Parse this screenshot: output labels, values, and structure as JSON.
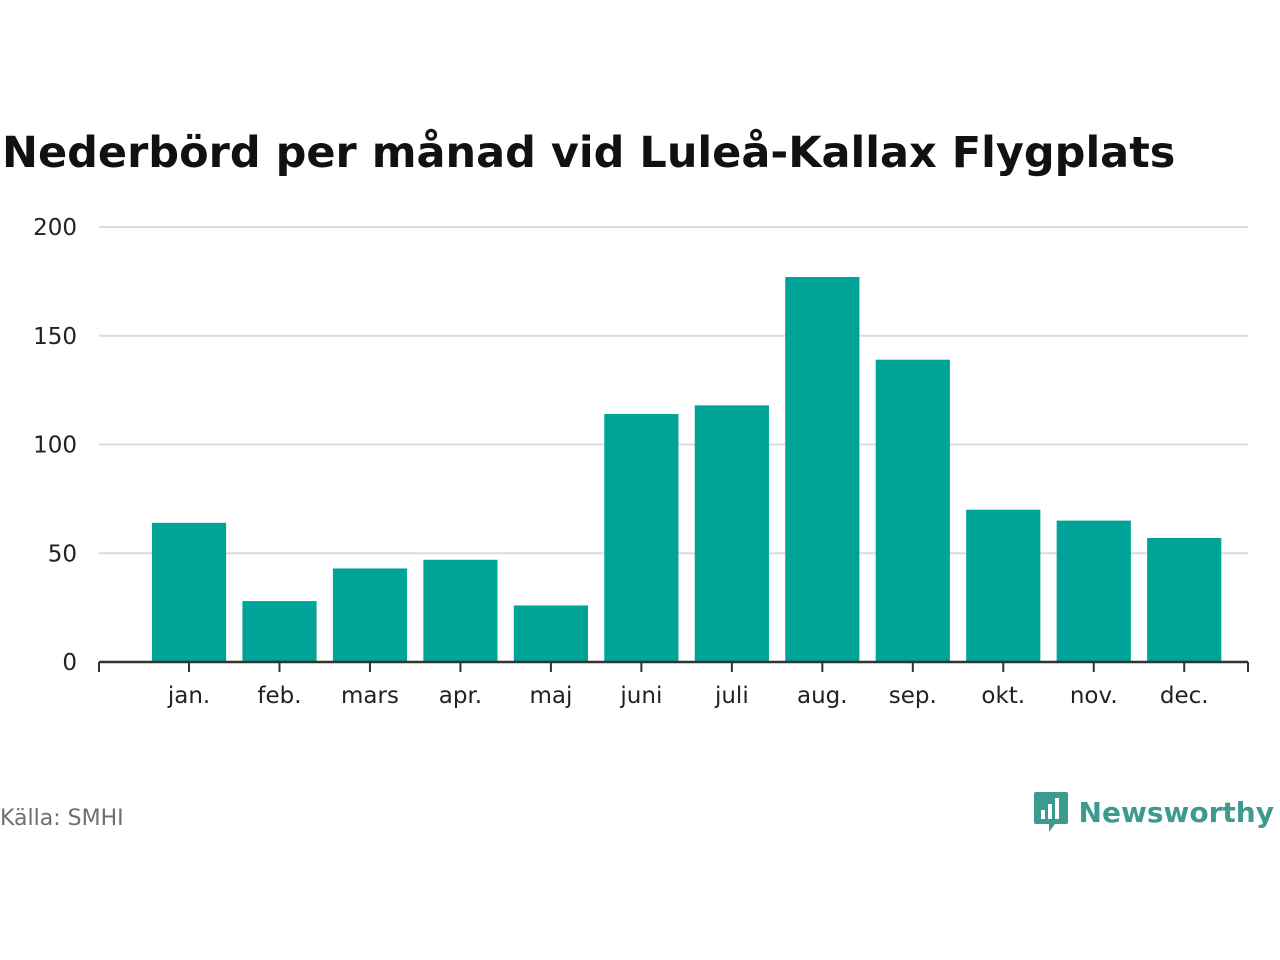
{
  "chart_data": {
    "type": "bar",
    "title": "Nederbörd per månad vid Luleå-Kallax Flygplats",
    "xlabel": "",
    "ylabel": "",
    "categories": [
      "jan.",
      "feb.",
      "mars",
      "apr.",
      "maj",
      "juni",
      "juli",
      "aug.",
      "sep.",
      "okt.",
      "nov.",
      "dec."
    ],
    "values": [
      64,
      28,
      43,
      47,
      26,
      114,
      118,
      177,
      139,
      70,
      65,
      57
    ],
    "ylim": [
      0,
      200
    ],
    "yticks": [
      0,
      50,
      100,
      150,
      200
    ],
    "grid": true,
    "bar_color": "#00a398"
  },
  "source": "Källa: SMHI",
  "brand": {
    "name": "Newsworthy",
    "icon": "newsworthy-logo-icon",
    "color": "#3d9a8f"
  }
}
